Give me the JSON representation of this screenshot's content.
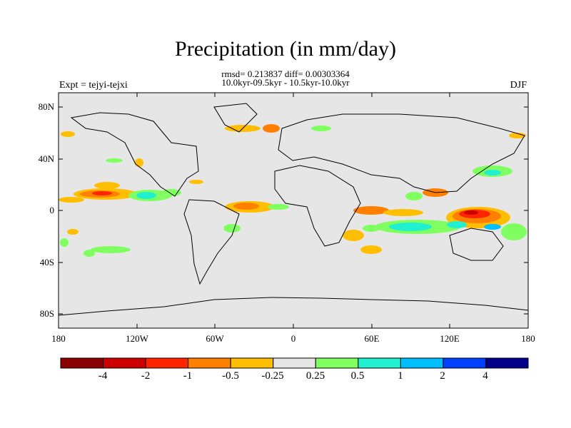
{
  "title": "Precipitation (in mm/day)",
  "stats_line": "rmsd= 0.213837 diff= 0.00303364",
  "period_line": "10.0kyr-09.5kyr - 10.5kyr-10.0kyr",
  "experiment_label": "Expt = tejyi-tejxi",
  "season_label": "DJF",
  "lat_ticks": [
    "80N",
    "40N",
    "0",
    "40S",
    "80S"
  ],
  "lon_ticks": [
    "180",
    "120W",
    "60W",
    "0",
    "60E",
    "120E",
    "180"
  ],
  "colorbar": {
    "labels": [
      "-4",
      "-2",
      "-1",
      "-0.5",
      "-0.25",
      "0.25",
      "0.5",
      "1",
      "2",
      "4"
    ],
    "colors": [
      "#8b0000",
      "#cd0000",
      "#ff2400",
      "#ff7f00",
      "#ffbf00",
      "#e6e6e6",
      "#80ff60",
      "#20f0d0",
      "#00bfff",
      "#0040ff",
      "#00008b"
    ]
  },
  "colors": {
    "ocean_bg": "#e6e6e6",
    "coast": "#000000"
  }
}
